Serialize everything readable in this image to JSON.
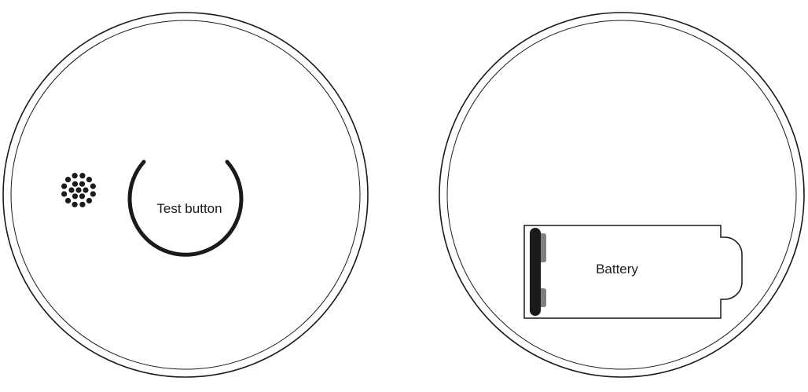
{
  "front_view": {
    "test_button_label": "Test button"
  },
  "back_view": {
    "battery_label": "Battery"
  },
  "colors": {
    "outline": "#1a1a1a",
    "terminal": "#808080",
    "background": "#ffffff"
  }
}
